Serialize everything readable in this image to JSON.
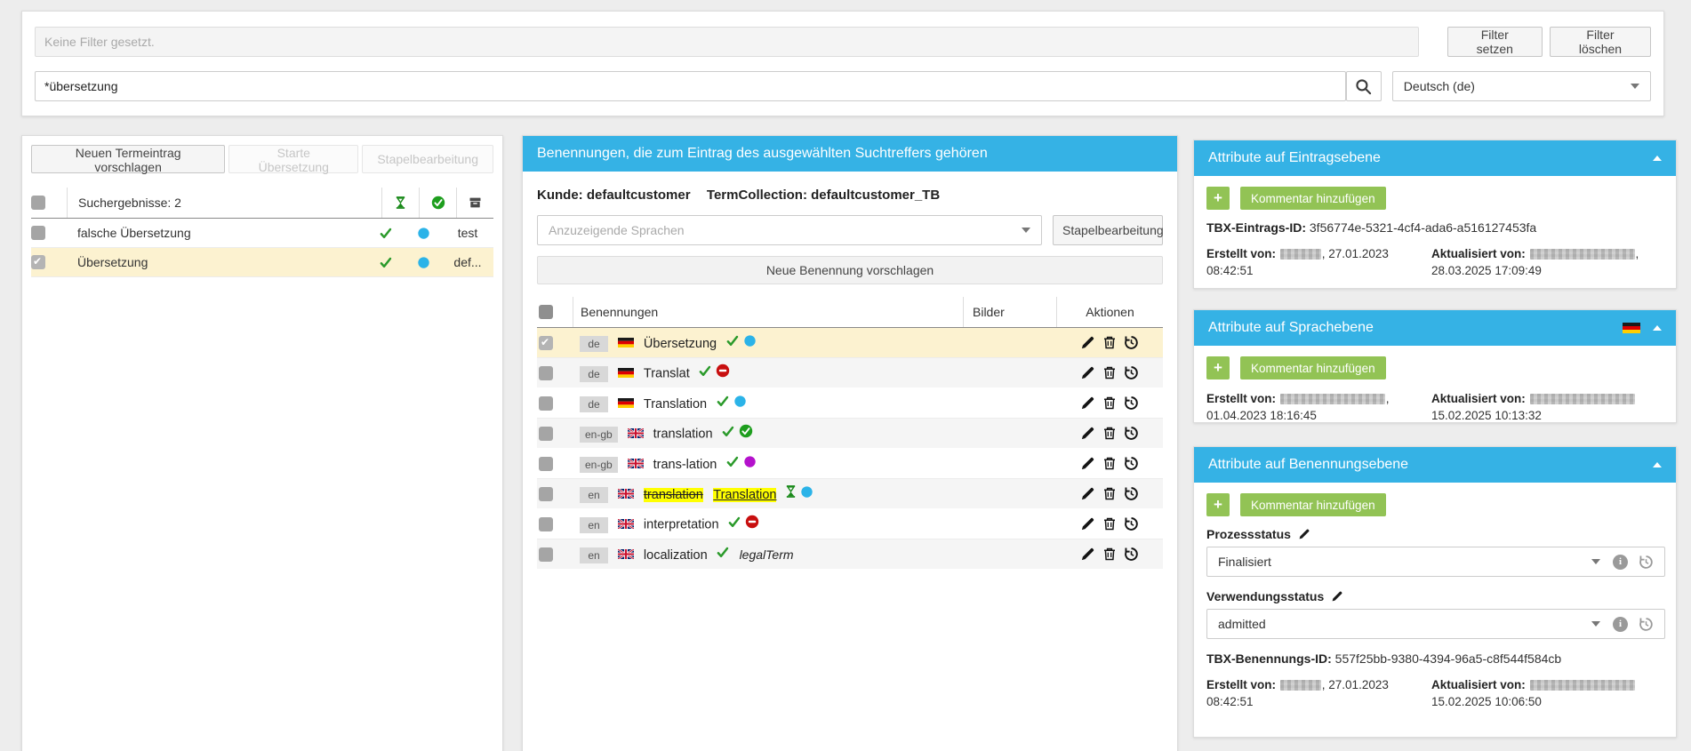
{
  "colors": {
    "accent_blue": "#35b2e5",
    "accent_green": "#92c355",
    "selection_yellow": "#fcf2d0",
    "highlight_yellow": "#ffff00",
    "status_blue": "#2bb3e8",
    "status_green": "#1e9e1e",
    "status_red": "#c80f0f",
    "status_purple": "#b412cc"
  },
  "topbar": {
    "filter_display_placeholder": "Keine Filter gesetzt.",
    "filter_set_label": "Filter setzen",
    "filter_clear_label": "Filter löschen",
    "search_value": "*übersetzung",
    "language_value": "Deutsch (de)"
  },
  "left_panel": {
    "buttons": {
      "new_entry": "Neuen Termeintrag vorschlagen",
      "start_translation": "Starte Übersetzung",
      "batch": "Stapelbearbeitung"
    },
    "header": {
      "label": "Suchergebnisse: 2",
      "icon_cols": [
        [
          "hourglass"
        ],
        [
          "ok-circle"
        ],
        [
          "archive-box"
        ]
      ]
    },
    "rows": [
      {
        "term": "falsche Übersetzung",
        "checked": false,
        "selected": false,
        "workflow_icon": [
          "check"
        ],
        "release_icon": [
          "dot-blue"
        ],
        "collection": "test"
      },
      {
        "term": "Übersetzung",
        "checked": true,
        "selected": true,
        "workflow_icon": [
          "check"
        ],
        "release_icon": [
          "dot-blue"
        ],
        "collection": "def..."
      }
    ]
  },
  "middle_panel": {
    "title": "Benennungen, die zum Eintrag des ausgewählten Suchtreffers gehören",
    "customer_label": "Kunde:",
    "customer": "defaultcustomer",
    "collection_label": "TermCollection:",
    "collection": "defaultcustomer_TB",
    "languages_placeholder": "Anzuzeigende Sprachen",
    "batch_button": "Stapelbearbeitung",
    "new_term_button": "Neue Benennung vorschlagen",
    "table": {
      "columns": [
        "Benennungen",
        "Bilder",
        "Aktionen"
      ],
      "actions": [
        "edit",
        "delete",
        "history"
      ],
      "rows": [
        {
          "lang": "de",
          "flag": "de",
          "term": "Übersetzung",
          "status_icons": [
            "check",
            "dot-blue"
          ],
          "checked": true,
          "selected": true
        },
        {
          "lang": "de",
          "flag": "de",
          "term": "Translat",
          "status_icons": [
            "check",
            "forbid"
          ]
        },
        {
          "lang": "de",
          "flag": "de",
          "term": "Translation",
          "status_icons": [
            "check",
            "dot-blue"
          ]
        },
        {
          "lang": "en-gb",
          "flag": "gb",
          "term": "translation",
          "status_icons": [
            "check",
            "ok-circle"
          ]
        },
        {
          "lang": "en-gb",
          "flag": "gb",
          "term": "trans-lation",
          "status_icons": [
            "check",
            "dot-purple"
          ]
        },
        {
          "lang": "en",
          "flag": "gb",
          "term_old": "translation",
          "term_new": "Translation",
          "status_icons": [
            "hourglass",
            "dot-blue"
          ]
        },
        {
          "lang": "en",
          "flag": "gb",
          "term": "interpretation",
          "status_icons": [
            "check",
            "forbid"
          ]
        },
        {
          "lang": "en",
          "flag": "gb",
          "term": "localization",
          "status_icons": [
            "check"
          ],
          "note": "legalTerm"
        }
      ]
    }
  },
  "right_panels": {
    "add_comment_label": "Kommentar hinzufügen",
    "plus_label": "+",
    "entry": {
      "title": "Attribute auf Eintragsebene",
      "tbx_label": "TBX-Eintrags-ID:",
      "tbx_id": "3f56774e-5321-4cf4-ada6-a516127453fa",
      "created_label": "Erstellt von:",
      "created_date": ", 27.01.2023 08:42:51",
      "updated_label": "Aktualisiert von:",
      "updated_date": ", 28.03.2025 17:09:49"
    },
    "language": {
      "title": "Attribute auf Sprachebene",
      "created_label": "Erstellt von:",
      "created_date": ", 01.04.2023 18:16:45",
      "updated_label": "Aktualisiert von:",
      "updated_date": " 15.02.2025 10:13:32"
    },
    "term": {
      "title": "Attribute auf Benennungsebene",
      "process_status_label": "Prozessstatus",
      "process_status_value": "Finalisiert",
      "usage_status_label": "Verwendungsstatus",
      "usage_status_value": "admitted",
      "tbx_label": "TBX-Benennungs-ID:",
      "tbx_id": "557f25bb-9380-4394-96a5-c8f544f584cb",
      "created_label": "Erstellt von:",
      "created_date": ", 27.01.2023 08:42:51",
      "updated_label": "Aktualisiert von:",
      "updated_date": " 15.02.2025 10:06:50"
    }
  }
}
